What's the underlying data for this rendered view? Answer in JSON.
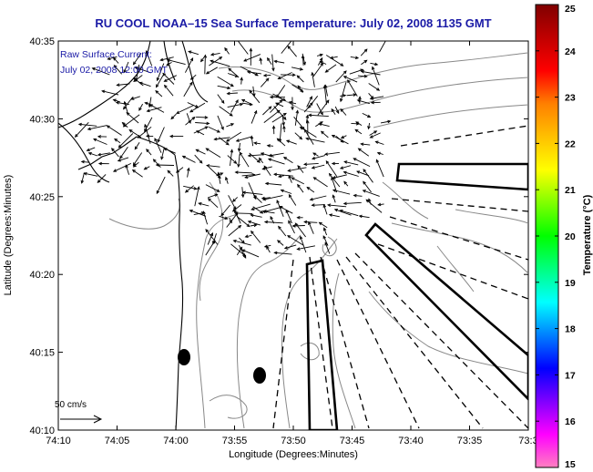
{
  "title": "RU COOL   NOAA–15  Sea Surface Temperature:  July 02, 2008 1135 GMT",
  "annotation": {
    "line1": "Raw Surface Current:",
    "line2": "July 02, 2008 12:00 GMT"
  },
  "axes": {
    "xlabel": "Longitude (Degrees:Minutes)",
    "ylabel": "Latitude (Degrees:Minutes)",
    "xticks": [
      "74:10",
      "74:05",
      "74:00",
      "73:55",
      "73:50",
      "73:45",
      "73:40",
      "73:35",
      "73:3"
    ],
    "yticks": [
      "40:35",
      "40:30",
      "40:25",
      "40:20",
      "40:15",
      "40:10"
    ]
  },
  "scale_arrow": {
    "label": "50 cm/s"
  },
  "colorbar": {
    "label": "Temperature (°C)",
    "ticks": [
      "25",
      "24",
      "23",
      "22",
      "21",
      "20",
      "19",
      "18",
      "17",
      "16",
      "15"
    ],
    "range": [
      15,
      25
    ],
    "colors": [
      "#ff80c0",
      "#ff00ff",
      "#8000ff",
      "#0000ff",
      "#0080ff",
      "#00ffff",
      "#00ff80",
      "#00ff00",
      "#80ff00",
      "#ffff00",
      "#ffc000",
      "#ff8000",
      "#ff0000",
      "#c00000",
      "#800000"
    ]
  },
  "colors": {
    "title": "#1a1aa6",
    "coast": "#000000",
    "bathymetry": "#888888",
    "vectors": "#000000"
  }
}
